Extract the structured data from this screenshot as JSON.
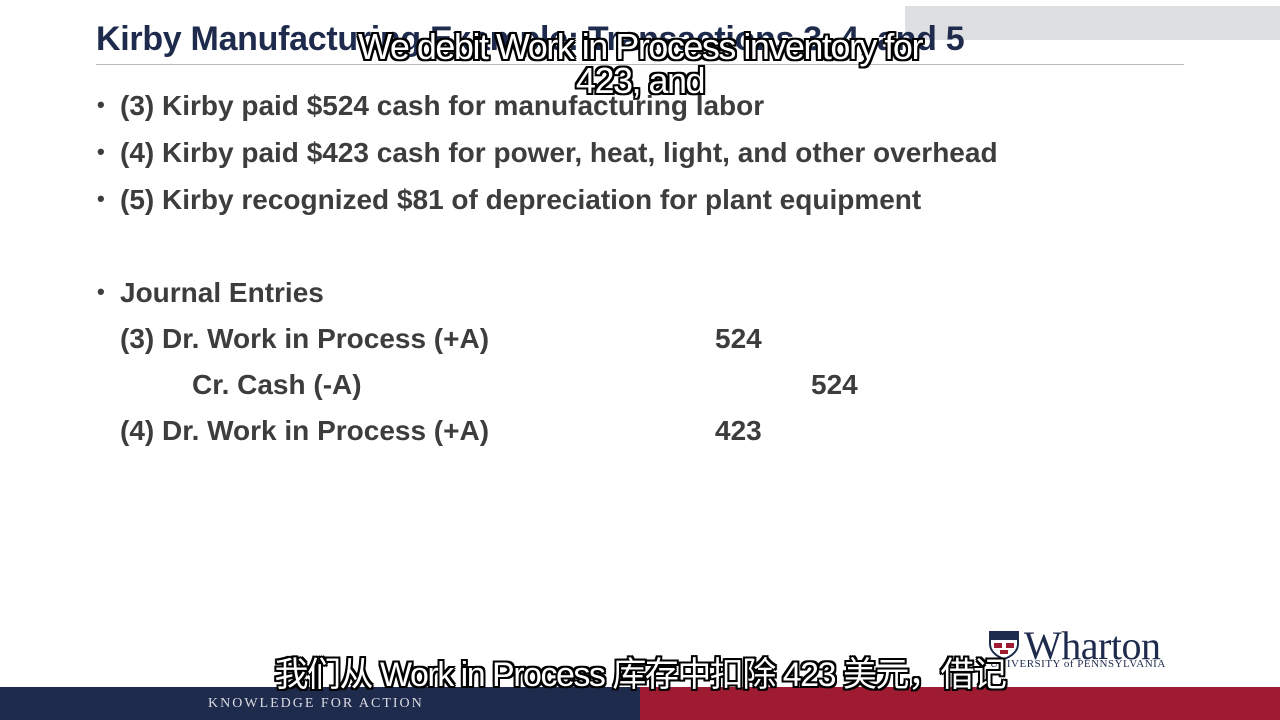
{
  "slide": {
    "title": "Kirby Manufacturing Example: Transactions 3, 4, and 5",
    "bullets": [
      "(3) Kirby paid $524 cash for manufacturing labor",
      "(4) Kirby paid $423 cash for power, heat, light, and other overhead",
      "(5) Kirby recognized $81 of depreciation for plant equipment"
    ],
    "bullet_symbol": "•",
    "journal_heading": "Journal Entries",
    "journal": [
      {
        "label": "(3) Dr. Work in Process (+A)",
        "debit": "524",
        "credit": ""
      },
      {
        "label": "Cr. Cash (-A)",
        "debit": "",
        "credit": "524"
      },
      {
        "label": "(4) Dr. Work in Process (+A)",
        "debit": "423",
        "credit": ""
      }
    ]
  },
  "captions": {
    "english_line1": "We debit Work in Process inventory for",
    "english_line2": "423, and",
    "chinese": "我们从 Work in Process 库存中扣除 423 美元，借记"
  },
  "branding": {
    "logo_word": "Wharton",
    "logo_sub": "UNIVERSITY of PENNSYLVANIA",
    "tagline": "KNOWLEDGE FOR ACTION",
    "colors": {
      "navy": "#1f2b4d",
      "red": "#9e1b32",
      "text": "#3d3d3d"
    }
  }
}
